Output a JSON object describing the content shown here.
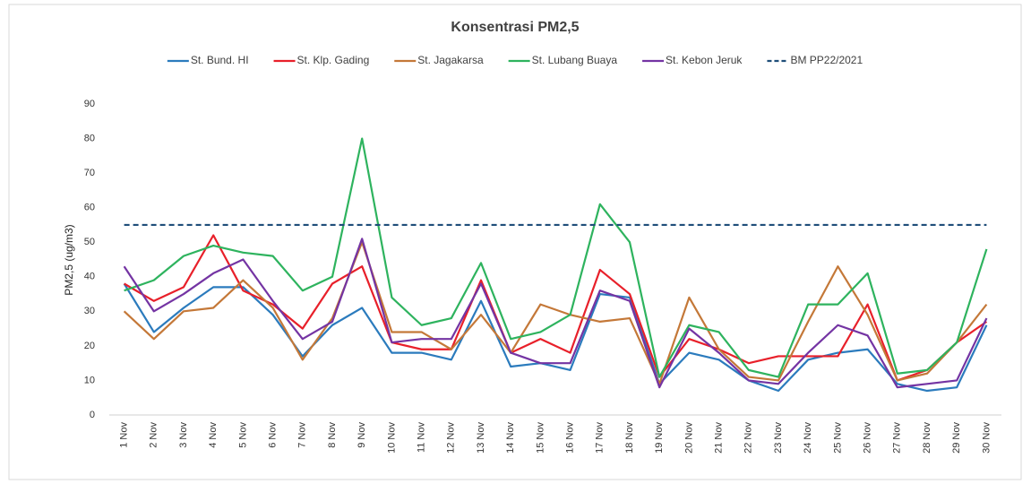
{
  "chart_data": {
    "type": "line",
    "title": "Konsentrasi PM2,5",
    "y_label": "PM2,5 (ug/m3)",
    "categories": [
      "1 Nov",
      "2 Nov",
      "3 Nov",
      "4 Nov",
      "5 Nov",
      "6 Nov",
      "7 Nov",
      "8 Nov",
      "9 Nov",
      "10 Nov",
      "11 Nov",
      "12 Nov",
      "13 Nov",
      "14 Nov",
      "15 Nov",
      "16 Nov",
      "17 Nov",
      "18 Nov",
      "19 Nov",
      "20 Nov",
      "21 Nov",
      "22 Nov",
      "23 Nov",
      "24 Nov",
      "25 Nov",
      "26 Nov",
      "27 Nov",
      "28 Nov",
      "29 Nov",
      "30 Nov"
    ],
    "series": [
      {
        "name": "St. Bund. HI",
        "color": "#2b7bbd",
        "values": [
          38,
          24,
          31,
          37,
          37,
          29,
          17,
          26,
          31,
          18,
          18,
          16,
          33,
          14,
          15,
          13,
          35,
          34,
          9,
          18,
          16,
          10,
          7,
          16,
          18,
          19,
          9,
          7,
          8,
          26
        ]
      },
      {
        "name": "St. Klp. Gading",
        "color": "#e8202a",
        "values": [
          38,
          33,
          37,
          52,
          36,
          32,
          25,
          38,
          43,
          21,
          19,
          19,
          39,
          18,
          22,
          18,
          42,
          35,
          11,
          22,
          19,
          15,
          17,
          17,
          17,
          32,
          10,
          13,
          21,
          27
        ]
      },
      {
        "name": "St. Jagakarsa",
        "color": "#c47838",
        "values": [
          30,
          22,
          30,
          31,
          39,
          31,
          16,
          28,
          50,
          24,
          24,
          19,
          29,
          18,
          32,
          29,
          27,
          28,
          9,
          34,
          19,
          11,
          10,
          27,
          43,
          29,
          10,
          12,
          21,
          32
        ]
      },
      {
        "name": "St. Lubang Buaya",
        "color": "#2eb35e",
        "values": [
          36,
          39,
          46,
          49,
          47,
          46,
          36,
          40,
          80,
          34,
          26,
          28,
          44,
          22,
          24,
          29,
          61,
          50,
          11,
          26,
          24,
          13,
          11,
          32,
          32,
          41,
          12,
          13,
          21,
          48
        ]
      },
      {
        "name": "St. Kebon Jeruk",
        "color": "#7434a3",
        "values": [
          43,
          30,
          35,
          41,
          45,
          33,
          22,
          27,
          51,
          21,
          22,
          22,
          38,
          18,
          15,
          15,
          36,
          33,
          8,
          25,
          18,
          10,
          9,
          18,
          26,
          23,
          8,
          9,
          10,
          28
        ]
      },
      {
        "name": "BM PP22/2021",
        "color": "#1f4e79",
        "dashed": true,
        "values": [
          55,
          55,
          55,
          55,
          55,
          55,
          55,
          55,
          55,
          55,
          55,
          55,
          55,
          55,
          55,
          55,
          55,
          55,
          55,
          55,
          55,
          55,
          55,
          55,
          55,
          55,
          55,
          55,
          55,
          55
        ]
      }
    ],
    "ylim": [
      0,
      90
    ],
    "yticks": [
      0,
      10,
      20,
      30,
      40,
      50,
      60,
      70,
      80,
      90
    ],
    "grid": false,
    "legend": "top"
  }
}
